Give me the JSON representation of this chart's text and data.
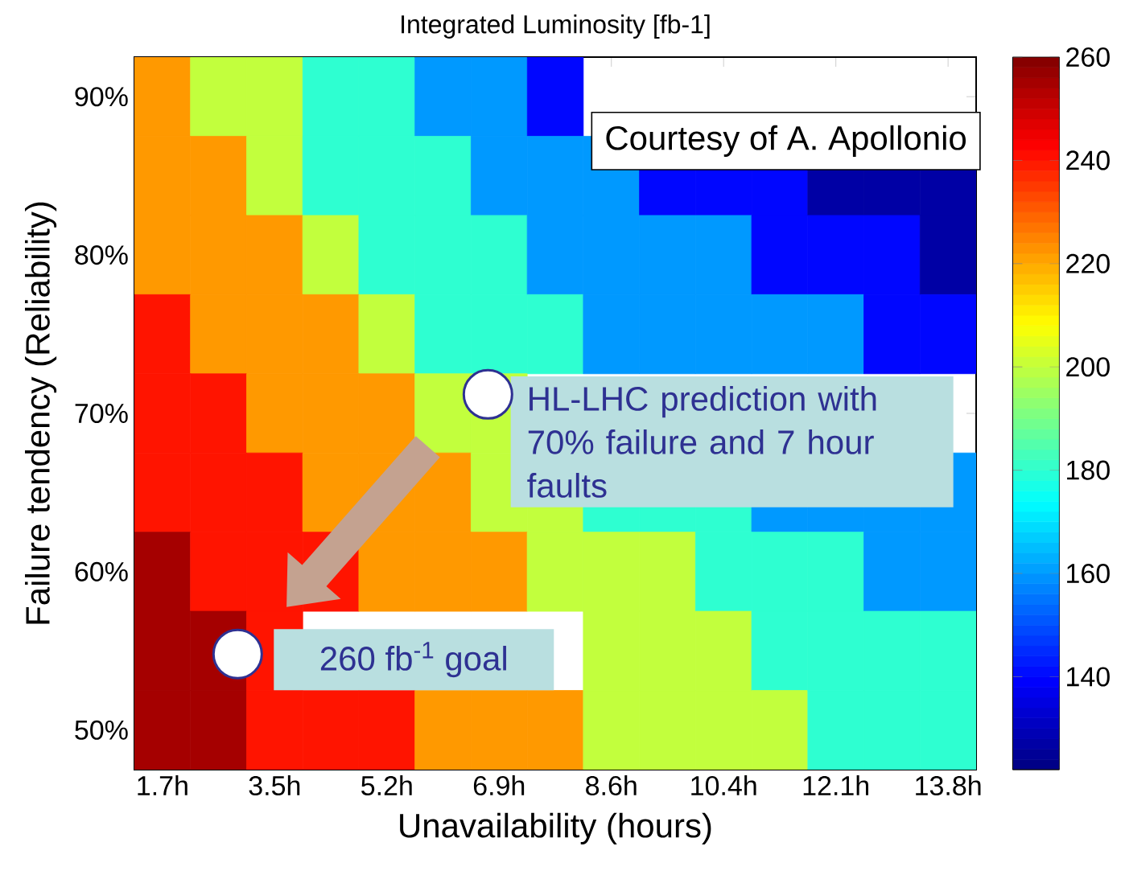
{
  "chart_data": {
    "type": "heatmap",
    "title": "Integrated Luminosity [fb-1]",
    "xlabel": "Unavailability (hours)",
    "ylabel": "Failure tendency (Reliability)",
    "categories": [
      "1.7h",
      null,
      "3.5h",
      null,
      "5.2h",
      null,
      "6.9h",
      null,
      "8.6h",
      null,
      "10.4h",
      null,
      "12.1h",
      null,
      "13.8h"
    ],
    "y_categories": [
      "90%",
      null,
      "80%",
      null,
      "70%",
      null,
      "60%",
      null,
      "50%"
    ],
    "cells": [
      [
        222,
        200,
        200,
        180,
        180,
        160,
        160,
        140,
        null,
        null,
        null,
        null,
        null,
        null,
        null
      ],
      [
        222,
        222,
        200,
        180,
        180,
        180,
        160,
        160,
        160,
        140,
        140,
        140,
        127,
        127,
        127
      ],
      [
        222,
        222,
        222,
        200,
        180,
        180,
        180,
        160,
        160,
        160,
        160,
        140,
        140,
        140,
        127
      ],
      [
        240,
        222,
        222,
        222,
        200,
        180,
        180,
        180,
        160,
        160,
        160,
        160,
        160,
        140,
        140
      ],
      [
        240,
        240,
        222,
        222,
        222,
        200,
        200,
        null,
        null,
        null,
        null,
        null,
        null,
        null,
        null
      ],
      [
        240,
        240,
        240,
        222,
        222,
        222,
        200,
        200,
        180,
        180,
        180,
        160,
        160,
        160,
        160
      ],
      [
        255,
        240,
        240,
        240,
        222,
        222,
        222,
        200,
        200,
        200,
        180,
        180,
        180,
        160,
        160
      ],
      [
        255,
        255,
        240,
        null,
        null,
        null,
        null,
        null,
        200,
        200,
        200,
        180,
        180,
        180,
        180
      ],
      [
        255,
        255,
        240,
        240,
        240,
        222,
        222,
        222,
        200,
        200,
        200,
        200,
        180,
        180,
        180
      ]
    ],
    "clim": [
      122,
      260
    ],
    "cticks": [
      140,
      160,
      180,
      200,
      220,
      240,
      260
    ],
    "annotations": [
      "Courtesy of A. Apollonio",
      "HL-LHC prediction with 70% failure and 7 hour faults",
      "260 fb$^{-1}$ goal"
    ]
  }
}
